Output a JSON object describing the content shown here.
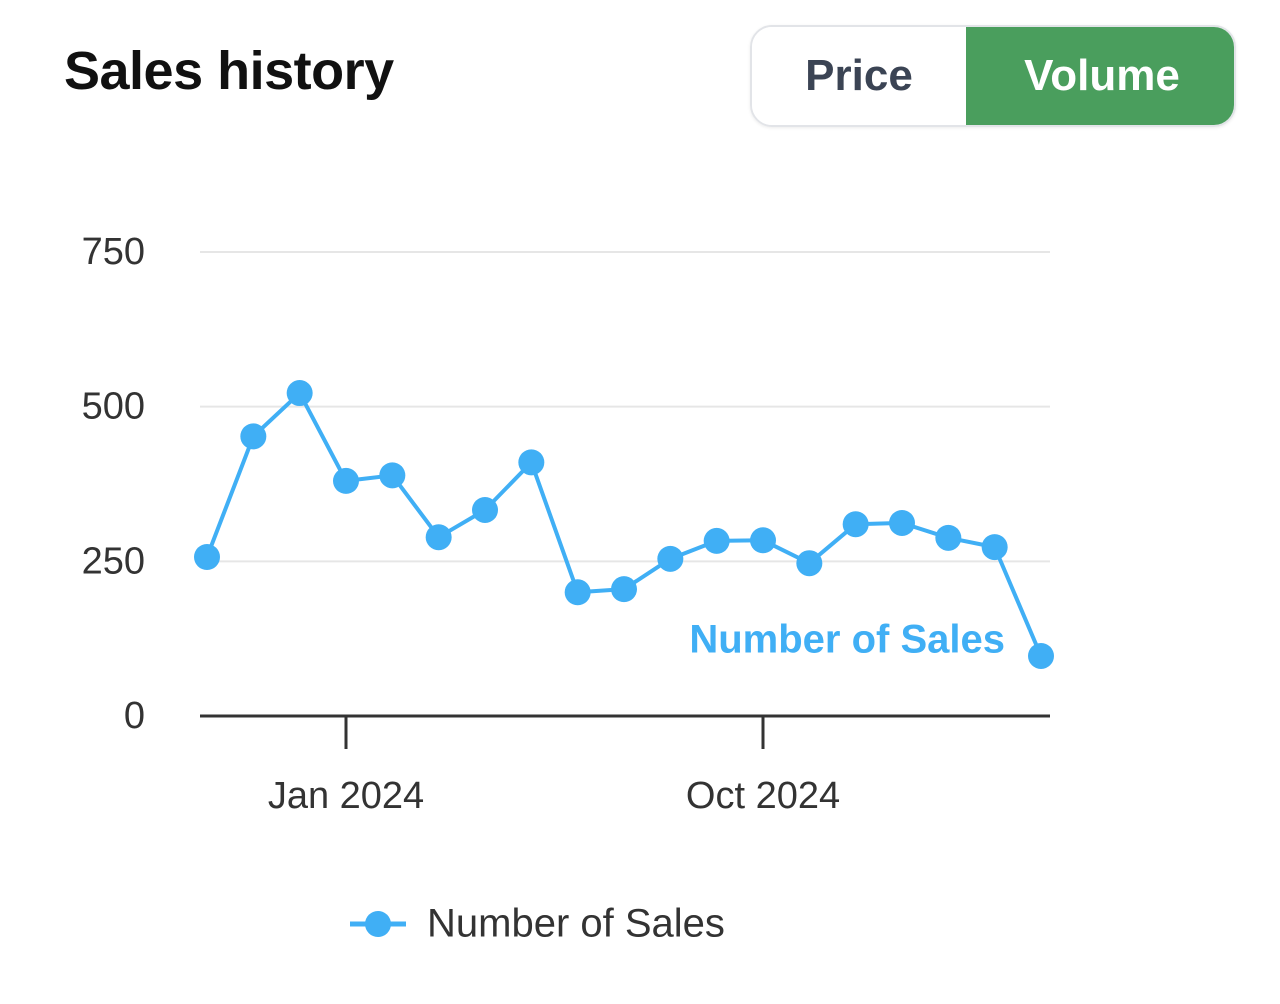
{
  "header": {
    "title": "Sales history"
  },
  "toggle": {
    "options": [
      "Price",
      "Volume"
    ],
    "selected": 1
  },
  "chart_data": {
    "type": "line",
    "x": [
      "2023-10",
      "2023-11",
      "2023-12",
      "2024-01",
      "2024-02",
      "2024-03",
      "2024-04",
      "2024-05",
      "2024-06",
      "2024-07",
      "2024-08",
      "2024-09",
      "2024-10",
      "2024-11",
      "2024-12",
      "2025-01",
      "2025-02",
      "2025-03",
      "2025-04"
    ],
    "series": [
      {
        "name": "Number of Sales",
        "color": "#40aff5",
        "values": [
          257,
          452,
          522,
          380,
          389,
          289,
          333,
          410,
          200,
          205,
          254,
          283,
          284,
          247,
          310,
          312,
          288,
          273,
          97
        ]
      }
    ],
    "xlim": [
      "2023-10",
      "2025-04"
    ],
    "xticks": [
      {
        "value": "2024-01",
        "label": "Jan 2024"
      },
      {
        "value": "2024-10",
        "label": "Oct 2024"
      }
    ],
    "ylim": [
      0,
      750
    ],
    "yticks": [
      0,
      250,
      500,
      750
    ],
    "grid": true,
    "annotation": "Number of Sales",
    "legend": "bottom"
  }
}
